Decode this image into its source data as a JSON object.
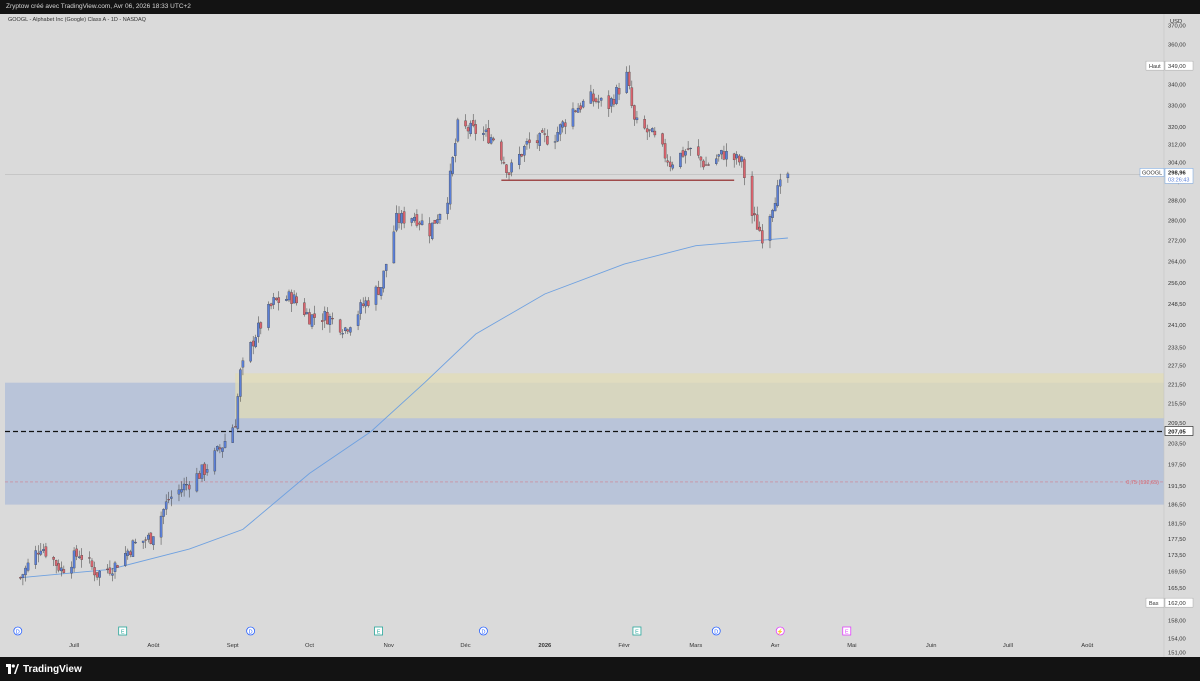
{
  "header": {
    "attribution": "Zryptow créé avec TradingView.com, Avr 06, 2026 18:33 UTC+2"
  },
  "chart_title": "GOOGL - Alphabet Inc (Google) Class A - 1D - NASDAQ",
  "footer": {
    "brand": "TradingView"
  },
  "colors": {
    "up": "#5b7fd6",
    "down": "#d9646e",
    "ma": "#6fa1e0",
    "neckline": "#8b1a1a",
    "zone_blue": "#b3bfd8",
    "zone_yellow": "#e2dcb6",
    "background": "#dadada",
    "frame": "#131313"
  },
  "chart_data": {
    "type": "candlestick",
    "title": "GOOGL - Alphabet Inc (Google) Class A - 1D - NASDAQ",
    "currency": "USD",
    "y_axis_labels": [
      "370,00",
      "360,00",
      "349,00",
      "340,00",
      "330,00",
      "320,00",
      "312,00",
      "304,00",
      "296,00",
      "288,00",
      "280,00",
      "272,00",
      "264,00",
      "256,00",
      "248,50",
      "241,00",
      "233,50",
      "227,50",
      "221,50",
      "215,50",
      "209,50",
      "203,50",
      "197,50",
      "191,50",
      "186,50",
      "181,50",
      "177,50",
      "173,50",
      "169,50",
      "165,50",
      "162,00",
      "158,00",
      "154,00",
      "151,00"
    ],
    "y_axis_scale": "log",
    "x_axis_labels": [
      "Juill",
      "Août",
      "Sept",
      "Oct",
      "Nov",
      "Déc",
      "2026",
      "Févr",
      "Mars",
      "Avr",
      "Mai",
      "Juin",
      "Juill",
      "Août"
    ],
    "price_badges": [
      {
        "label": "Haut",
        "value": "349,00"
      },
      {
        "label": "GOOGL",
        "value": "298,96",
        "sub": "03:26:43"
      },
      {
        "label": "",
        "value": "207,05"
      },
      {
        "label": "Bas",
        "value": "162,00"
      }
    ],
    "levels": {
      "dashed_line": 207.05,
      "fib_label": "0,75 (192,65)",
      "fib": 192.65,
      "neckline": 296.5
    },
    "zones": [
      {
        "name": "blue",
        "from": 186.5,
        "to": 222,
        "x_start": "start",
        "x_end": "right"
      },
      {
        "name": "yellow",
        "from": 211,
        "to": 225,
        "x_start": "Sept",
        "x_end": "right"
      }
    ],
    "event_markers": [
      {
        "x": "Juin",
        "kind": "D"
      },
      {
        "x": "Juill",
        "kind": "E"
      },
      {
        "x": "Sept",
        "kind": "D"
      },
      {
        "x": "Oct",
        "kind": "E"
      },
      {
        "x": "Déc",
        "kind": "D"
      },
      {
        "x": "Févr",
        "kind": "E"
      },
      {
        "x": "Mars",
        "kind": "D"
      },
      {
        "x": "Avr",
        "kind": "⚡"
      },
      {
        "x": "Mai",
        "kind": "E"
      }
    ],
    "close_path": [
      [
        "2025-06-10",
        168
      ],
      [
        "2025-06-18",
        176
      ],
      [
        "2025-06-26",
        170
      ],
      [
        "2025-07-03",
        174
      ],
      [
        "2025-07-10",
        169
      ],
      [
        "2025-07-17",
        171
      ],
      [
        "2025-07-24",
        176
      ],
      [
        "2025-07-31",
        178
      ],
      [
        "2025-08-07",
        188
      ],
      [
        "2025-08-14",
        192
      ],
      [
        "2025-08-21",
        196
      ],
      [
        "2025-08-28",
        203
      ],
      [
        "2025-09-02",
        210
      ],
      [
        "2025-09-04",
        225
      ],
      [
        "2025-09-10",
        238
      ],
      [
        "2025-09-17",
        249
      ],
      [
        "2025-09-24",
        251
      ],
      [
        "2025-10-01",
        244
      ],
      [
        "2025-10-08",
        244
      ],
      [
        "2025-10-15",
        240
      ],
      [
        "2025-10-22",
        248
      ],
      [
        "2025-10-29",
        255
      ],
      [
        "2025-11-04",
        280
      ],
      [
        "2025-11-11",
        282
      ],
      [
        "2025-11-17",
        276
      ],
      [
        "2025-11-24",
        290
      ],
      [
        "2025-11-28",
        320
      ],
      [
        "2025-12-05",
        318
      ],
      [
        "2025-12-12",
        315
      ],
      [
        "2025-12-18",
        300
      ],
      [
        "2025-12-25",
        312
      ],
      [
        "2026-01-05",
        316
      ],
      [
        "2026-01-12",
        328
      ],
      [
        "2026-01-19",
        333
      ],
      [
        "2026-01-26",
        330
      ],
      [
        "2026-02-02",
        344
      ],
      [
        "2026-02-05",
        322
      ],
      [
        "2026-02-12",
        316
      ],
      [
        "2026-02-19",
        304
      ],
      [
        "2026-02-26",
        310
      ],
      [
        "2026-03-05",
        303
      ],
      [
        "2026-03-12",
        308
      ],
      [
        "2026-03-19",
        304
      ],
      [
        "2026-03-23",
        282
      ],
      [
        "2026-03-27",
        274
      ],
      [
        "2026-04-01",
        290
      ],
      [
        "2026-04-06",
        298.96
      ]
    ],
    "moving_average": [
      [
        "2025-06-10",
        168
      ],
      [
        "2025-07-15",
        170
      ],
      [
        "2025-08-15",
        175
      ],
      [
        "2025-09-05",
        180
      ],
      [
        "2025-10-01",
        195
      ],
      [
        "2025-10-25",
        207
      ],
      [
        "2025-11-15",
        222
      ],
      [
        "2025-12-05",
        238
      ],
      [
        "2026-01-01",
        252
      ],
      [
        "2026-02-01",
        263
      ],
      [
        "2026-03-01",
        270
      ],
      [
        "2026-04-06",
        273
      ]
    ],
    "x_range": [
      "2025-06-04",
      "2026-08-31"
    ],
    "y_range": [
      150,
      376
    ]
  }
}
